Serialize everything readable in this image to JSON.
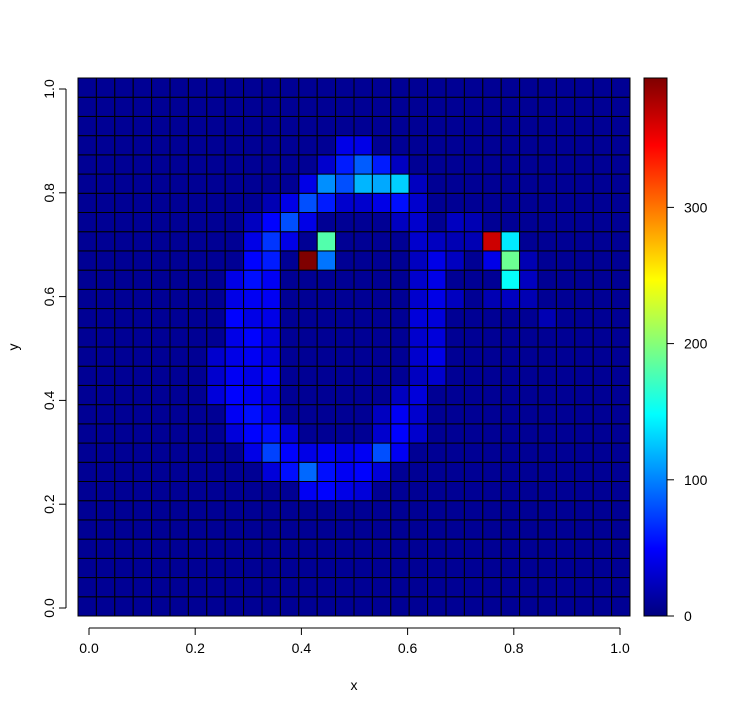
{
  "chart_data": {
    "type": "heatmap",
    "title": "",
    "xlabel": "x",
    "ylabel": "y",
    "xlim": [
      0,
      1
    ],
    "ylim": [
      0,
      1
    ],
    "nx": 30,
    "ny": 28,
    "x_ticks": [
      0.0,
      0.2,
      0.4,
      0.6,
      0.8,
      1.0
    ],
    "x_tick_labels": [
      "0.0",
      "0.2",
      "0.4",
      "0.6",
      "0.8",
      "1.0"
    ],
    "y_ticks": [
      0.0,
      0.2,
      0.4,
      0.6,
      0.8,
      1.0
    ],
    "y_tick_labels": [
      "0.0",
      "0.2",
      "0.4",
      "0.6",
      "0.8",
      "1.0"
    ],
    "value_range": [
      0,
      395
    ],
    "colorbar_ticks": [
      0,
      100,
      200,
      300
    ],
    "colorbar_tick_labels": [
      "0",
      "100",
      "200",
      "300"
    ],
    "colormap": [
      "#00007F",
      "#0000FF",
      "#007FFF",
      "#00FFFF",
      "#7FFF7F",
      "#FFFF00",
      "#FF7F00",
      "#FF0000",
      "#7F0000"
    ],
    "grid": true,
    "background_value": 8,
    "cells": [
      {
        "col": 14,
        "row": 24,
        "v": 40
      },
      {
        "col": 15,
        "row": 24,
        "v": 40
      },
      {
        "col": 13,
        "row": 23,
        "v": 30
      },
      {
        "col": 14,
        "row": 23,
        "v": 60
      },
      {
        "col": 15,
        "row": 23,
        "v": 85
      },
      {
        "col": 16,
        "row": 23,
        "v": 60
      },
      {
        "col": 17,
        "row": 23,
        "v": 25
      },
      {
        "col": 12,
        "row": 22,
        "v": 40
      },
      {
        "col": 13,
        "row": 22,
        "v": 105
      },
      {
        "col": 14,
        "row": 22,
        "v": 80
      },
      {
        "col": 15,
        "row": 22,
        "v": 120
      },
      {
        "col": 16,
        "row": 22,
        "v": 115
      },
      {
        "col": 17,
        "row": 22,
        "v": 130
      },
      {
        "col": 18,
        "row": 22,
        "v": 25
      },
      {
        "col": 10,
        "row": 21,
        "v": 20
      },
      {
        "col": 11,
        "row": 21,
        "v": 40
      },
      {
        "col": 12,
        "row": 21,
        "v": 80
      },
      {
        "col": 13,
        "row": 21,
        "v": 60
      },
      {
        "col": 14,
        "row": 21,
        "v": 30
      },
      {
        "col": 15,
        "row": 21,
        "v": 30
      },
      {
        "col": 16,
        "row": 21,
        "v": 40
      },
      {
        "col": 17,
        "row": 21,
        "v": 55
      },
      {
        "col": 18,
        "row": 21,
        "v": 30
      },
      {
        "col": 9,
        "row": 20,
        "v": 25
      },
      {
        "col": 10,
        "row": 20,
        "v": 50
      },
      {
        "col": 11,
        "row": 20,
        "v": 80
      },
      {
        "col": 12,
        "row": 20,
        "v": 40
      },
      {
        "col": 17,
        "row": 20,
        "v": 25
      },
      {
        "col": 18,
        "row": 20,
        "v": 30
      },
      {
        "col": 20,
        "row": 20,
        "v": 25
      },
      {
        "col": 21,
        "row": 20,
        "v": 20
      },
      {
        "col": 9,
        "row": 19,
        "v": 40
      },
      {
        "col": 10,
        "row": 19,
        "v": 70
      },
      {
        "col": 11,
        "row": 19,
        "v": 40
      },
      {
        "col": 13,
        "row": 19,
        "v": 180
      },
      {
        "col": 18,
        "row": 19,
        "v": 30
      },
      {
        "col": 19,
        "row": 19,
        "v": 25
      },
      {
        "col": 20,
        "row": 19,
        "v": 20
      },
      {
        "col": 21,
        "row": 19,
        "v": 20
      },
      {
        "col": 22,
        "row": 19,
        "v": 365
      },
      {
        "col": 23,
        "row": 19,
        "v": 140
      },
      {
        "col": 9,
        "row": 18,
        "v": 50
      },
      {
        "col": 10,
        "row": 18,
        "v": 60
      },
      {
        "col": 12,
        "row": 18,
        "v": 395
      },
      {
        "col": 13,
        "row": 18,
        "v": 95
      },
      {
        "col": 18,
        "row": 18,
        "v": 25
      },
      {
        "col": 19,
        "row": 18,
        "v": 40
      },
      {
        "col": 20,
        "row": 18,
        "v": 25
      },
      {
        "col": 22,
        "row": 18,
        "v": 40
      },
      {
        "col": 23,
        "row": 18,
        "v": 190
      },
      {
        "col": 24,
        "row": 18,
        "v": 20
      },
      {
        "col": 8,
        "row": 17,
        "v": 40
      },
      {
        "col": 9,
        "row": 17,
        "v": 55
      },
      {
        "col": 10,
        "row": 17,
        "v": 45
      },
      {
        "col": 18,
        "row": 17,
        "v": 30
      },
      {
        "col": 19,
        "row": 17,
        "v": 40
      },
      {
        "col": 23,
        "row": 17,
        "v": 150
      },
      {
        "col": 24,
        "row": 17,
        "v": 25
      },
      {
        "col": 8,
        "row": 16,
        "v": 40
      },
      {
        "col": 9,
        "row": 16,
        "v": 45
      },
      {
        "col": 10,
        "row": 16,
        "v": 45
      },
      {
        "col": 18,
        "row": 16,
        "v": 30
      },
      {
        "col": 19,
        "row": 16,
        "v": 40
      },
      {
        "col": 20,
        "row": 16,
        "v": 25
      },
      {
        "col": 22,
        "row": 16,
        "v": 20
      },
      {
        "col": 23,
        "row": 16,
        "v": 25
      },
      {
        "col": 24,
        "row": 16,
        "v": 20
      },
      {
        "col": 8,
        "row": 15,
        "v": 50
      },
      {
        "col": 9,
        "row": 15,
        "v": 40
      },
      {
        "col": 10,
        "row": 15,
        "v": 40
      },
      {
        "col": 18,
        "row": 15,
        "v": 35
      },
      {
        "col": 19,
        "row": 15,
        "v": 35
      },
      {
        "col": 25,
        "row": 15,
        "v": 20
      },
      {
        "col": 8,
        "row": 14,
        "v": 40
      },
      {
        "col": 9,
        "row": 14,
        "v": 50
      },
      {
        "col": 10,
        "row": 14,
        "v": 35
      },
      {
        "col": 18,
        "row": 14,
        "v": 30
      },
      {
        "col": 19,
        "row": 14,
        "v": 35
      },
      {
        "col": 7,
        "row": 13,
        "v": 30
      },
      {
        "col": 8,
        "row": 13,
        "v": 40
      },
      {
        "col": 9,
        "row": 13,
        "v": 45
      },
      {
        "col": 10,
        "row": 13,
        "v": 35
      },
      {
        "col": 18,
        "row": 13,
        "v": 30
      },
      {
        "col": 19,
        "row": 13,
        "v": 40
      },
      {
        "col": 7,
        "row": 12,
        "v": 30
      },
      {
        "col": 8,
        "row": 12,
        "v": 45
      },
      {
        "col": 9,
        "row": 12,
        "v": 40
      },
      {
        "col": 10,
        "row": 12,
        "v": 45
      },
      {
        "col": 18,
        "row": 12,
        "v": 25
      },
      {
        "col": 19,
        "row": 12,
        "v": 30
      },
      {
        "col": 7,
        "row": 11,
        "v": 35
      },
      {
        "col": 8,
        "row": 11,
        "v": 50
      },
      {
        "col": 9,
        "row": 11,
        "v": 45
      },
      {
        "col": 10,
        "row": 11,
        "v": 35
      },
      {
        "col": 17,
        "row": 11,
        "v": 25
      },
      {
        "col": 18,
        "row": 11,
        "v": 35
      },
      {
        "col": 8,
        "row": 10,
        "v": 45
      },
      {
        "col": 9,
        "row": 10,
        "v": 55
      },
      {
        "col": 10,
        "row": 10,
        "v": 40
      },
      {
        "col": 16,
        "row": 10,
        "v": 25
      },
      {
        "col": 17,
        "row": 10,
        "v": 45
      },
      {
        "col": 18,
        "row": 10,
        "v": 30
      },
      {
        "col": 8,
        "row": 9,
        "v": 35
      },
      {
        "col": 9,
        "row": 9,
        "v": 50
      },
      {
        "col": 10,
        "row": 9,
        "v": 55
      },
      {
        "col": 11,
        "row": 9,
        "v": 35
      },
      {
        "col": 16,
        "row": 9,
        "v": 30
      },
      {
        "col": 17,
        "row": 9,
        "v": 50
      },
      {
        "col": 18,
        "row": 9,
        "v": 30
      },
      {
        "col": 9,
        "row": 8,
        "v": 40
      },
      {
        "col": 10,
        "row": 8,
        "v": 75
      },
      {
        "col": 11,
        "row": 8,
        "v": 50
      },
      {
        "col": 12,
        "row": 8,
        "v": 40
      },
      {
        "col": 13,
        "row": 8,
        "v": 45
      },
      {
        "col": 14,
        "row": 8,
        "v": 40
      },
      {
        "col": 15,
        "row": 8,
        "v": 45
      },
      {
        "col": 16,
        "row": 8,
        "v": 80
      },
      {
        "col": 17,
        "row": 8,
        "v": 45
      },
      {
        "col": 10,
        "row": 7,
        "v": 35
      },
      {
        "col": 11,
        "row": 7,
        "v": 55
      },
      {
        "col": 12,
        "row": 7,
        "v": 90
      },
      {
        "col": 13,
        "row": 7,
        "v": 55
      },
      {
        "col": 14,
        "row": 7,
        "v": 45
      },
      {
        "col": 15,
        "row": 7,
        "v": 50
      },
      {
        "col": 16,
        "row": 7,
        "v": 35
      },
      {
        "col": 12,
        "row": 6,
        "v": 45
      },
      {
        "col": 13,
        "row": 6,
        "v": 50
      },
      {
        "col": 14,
        "row": 6,
        "v": 40
      },
      {
        "col": 15,
        "row": 6,
        "v": 35
      }
    ]
  }
}
